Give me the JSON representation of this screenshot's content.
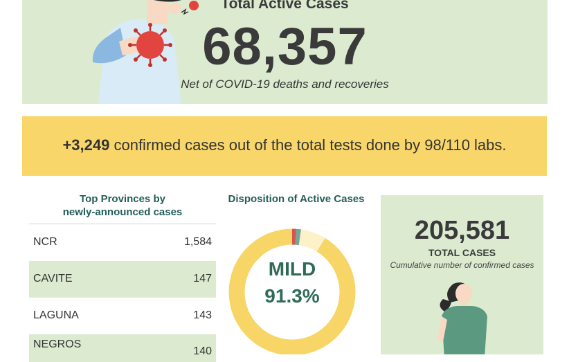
{
  "active": {
    "title": "Total Active Cases",
    "number": "68,357",
    "subtitle": "Net of COVID-19 deaths and recoveries"
  },
  "confirmed": {
    "number": "+3,249",
    "text": " confirmed cases out of the total tests done by 98/110 labs."
  },
  "provinces": {
    "title_line1": "Top Provinces by",
    "title_line2": "newly-announced cases",
    "rows": [
      {
        "name": "NCR",
        "value": "1,584"
      },
      {
        "name": "CAVITE",
        "value": "147"
      },
      {
        "name": "LAGUNA",
        "value": "143"
      },
      {
        "name": "NEGROS",
        "value": "140"
      }
    ]
  },
  "disposition": {
    "title": "Disposition of Active Cases",
    "mild_label": "MILD",
    "mild_value": "91.3%",
    "mild_fraction": 0.913,
    "colors": {
      "mild": "#f7d566",
      "asymptomatic": "#fdf1c9",
      "other": "#6fa89a",
      "critical": "#d9534f",
      "ring_bg": "#ffffff"
    }
  },
  "total": {
    "number": "205,581",
    "label": "TOTAL CASES",
    "desc": "Cumulative number of confirmed cases"
  },
  "colors": {
    "banner_green": "#dcebd0",
    "strip_yellow": "#f8d66a",
    "heading_teal": "#245e5a"
  }
}
